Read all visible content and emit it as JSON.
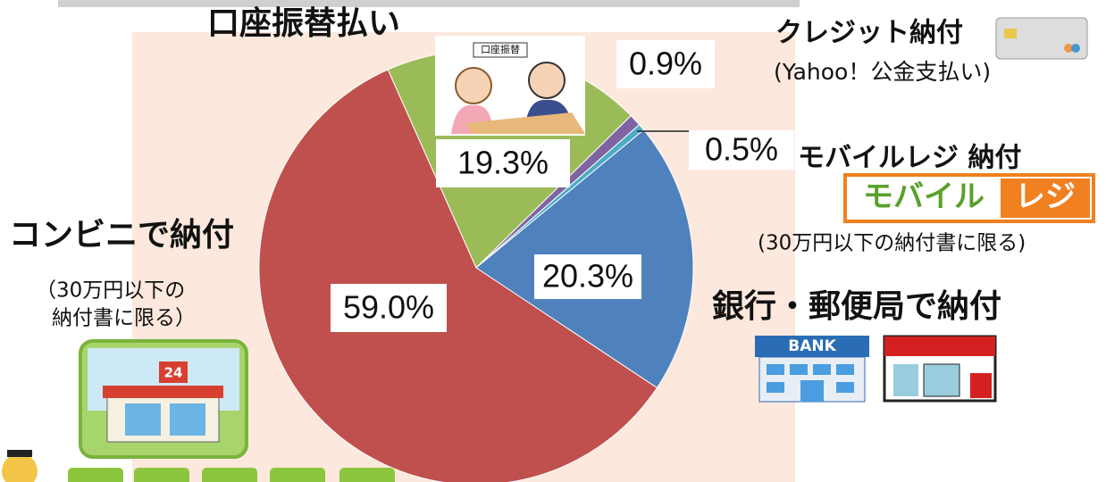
{
  "chart_data": {
    "type": "pie",
    "categories": [
      "口座振替払い",
      "クレジット納付",
      "モバイルレジ 納付",
      "銀行・郵便局で納付",
      "コンビニで納付"
    ],
    "values": [
      19.3,
      0.9,
      0.5,
      20.3,
      59.0
    ],
    "value_labels": [
      "19.3%",
      "0.9%",
      "0.5%",
      "20.3%",
      "59.0%"
    ],
    "colors": [
      "#9bbb59",
      "#8064a2",
      "#4bacc6",
      "#4f81bd",
      "#c0504d"
    ],
    "annotations": [
      "(Yahoo！公金支払い)",
      "(30万円以下の納付書に限る)",
      "（30万円以下の",
      "納付書に限る）"
    ]
  },
  "icons": {
    "mobile_logo_left": "モバイル",
    "mobile_logo_right": "レジ",
    "bank_sign": "BANK",
    "store_sign": "24",
    "desk_sign": "口座振替"
  }
}
